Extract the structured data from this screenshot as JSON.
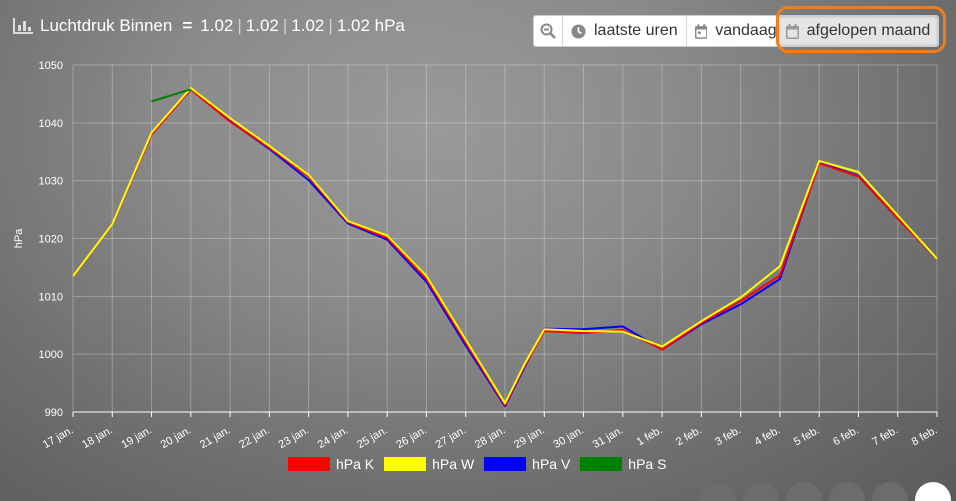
{
  "title": "Luchtdruk Binnen",
  "summary": {
    "v1": "1.02",
    "v2": "1.02",
    "v3": "1.02",
    "v4": "1.02 hPa"
  },
  "range_buttons": {
    "recent": "laatste uren",
    "today": "vandaag",
    "month": "afgelopen maand"
  },
  "colors": {
    "accent_highlight": "#f07c1e",
    "K": "#ff0000",
    "W": "#ffff00",
    "V": "#0000ff",
    "S": "#008000"
  },
  "chart_data": {
    "type": "line",
    "ylabel": "hPa",
    "ylim": [
      990,
      1050
    ],
    "yticks": [
      "990",
      "1000",
      "1010",
      "1020",
      "1030",
      "1040",
      "1050"
    ],
    "grid": true,
    "legend_position": "bottom",
    "categories": [
      "17 jan.",
      "18 jan.",
      "19 jan.",
      "20 jan.",
      "21 jan.",
      "22 jan.",
      "23 jan.",
      "24 jan.",
      "25 jan.",
      "26 jan.",
      "27 jan.",
      "28 jan.",
      "29 jan.",
      "30 jan.",
      "31 jan.",
      "1 feb.",
      "2 feb.",
      "3 feb.",
      "4 feb.",
      "5 feb.",
      "6 feb.",
      "7 feb.",
      "8 feb."
    ],
    "series": [
      {
        "name": "hPa K",
        "color": "#ff0000",
        "x": [
          0,
          1,
          2,
          3,
          4,
          5,
          6,
          7,
          8,
          9,
          10,
          11,
          11.5,
          12,
          13,
          14,
          15,
          16,
          17,
          18,
          19,
          20,
          21,
          22
        ],
        "values": [
          1013.5,
          1022.5,
          1038,
          1045.8,
          1040.2,
          1035.7,
          1030.7,
          1022.8,
          1020.1,
          1013,
          1002,
          991.2,
          998,
          1004,
          1003.6,
          1004.2,
          1000.8,
          1005.4,
          1009.2,
          1013.6,
          1033,
          1030.7,
          1023.5,
          1016.5
        ]
      },
      {
        "name": "hPa W",
        "color": "#ffff00",
        "x": [
          0,
          1,
          2,
          3,
          4,
          5,
          6,
          7,
          8,
          9,
          10,
          11,
          11.5,
          12,
          13,
          14,
          15,
          16,
          17,
          18,
          19,
          20,
          21,
          22
        ],
        "values": [
          1013.5,
          1022.5,
          1038.3,
          1046,
          1040.8,
          1036,
          1031,
          1023,
          1020.5,
          1013.5,
          1002.5,
          991.5,
          998.3,
          1004.3,
          1004,
          1003.9,
          1001.3,
          1005.7,
          1009.8,
          1015.2,
          1033.4,
          1031.5,
          1024,
          1016.5
        ]
      },
      {
        "name": "hPa V",
        "color": "#0000ff",
        "x": [
          0,
          1,
          2,
          3,
          4,
          5,
          6,
          7,
          8,
          9,
          10,
          11,
          11.5,
          12,
          13,
          14,
          15,
          16,
          17,
          18,
          19,
          20,
          21,
          22
        ],
        "values": [
          1013.5,
          1022.5,
          1038,
          1045.8,
          1040.3,
          1035.5,
          1030.1,
          1022.6,
          1019.8,
          1012.5,
          1001.5,
          991,
          997.8,
          1004.4,
          1004.3,
          1004.8,
          1000.8,
          1005.2,
          1008.6,
          1013,
          1033.1,
          1030.8,
          1023.5,
          1016.5
        ]
      },
      {
        "name": "hPa S",
        "color": "#008000",
        "x": [
          2,
          3
        ],
        "values": [
          1043.7,
          1045.8
        ]
      }
    ]
  },
  "pagination": {
    "count": 6,
    "active_index": 5
  }
}
